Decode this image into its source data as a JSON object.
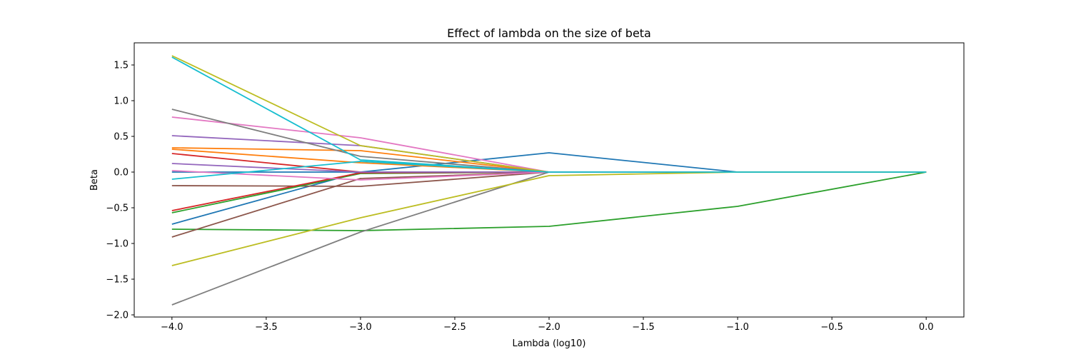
{
  "chart_data": {
    "type": "line",
    "title": "Effect of lambda on the size of beta",
    "xlabel": "Lambda (log10)",
    "ylabel": "Beta",
    "xlim": [
      -4.2,
      0.2
    ],
    "ylim": [
      -2.03,
      1.81
    ],
    "grid": false,
    "legend": "none",
    "x": [
      -4.0,
      -3.0,
      -2.0,
      -1.0,
      0.0
    ],
    "x_ticks": [
      -4.0,
      -3.5,
      -3.0,
      -2.5,
      -2.0,
      -1.5,
      -1.0,
      -0.5,
      0.0
    ],
    "x_tick_labels": [
      "−4.0",
      "−3.5",
      "−3.0",
      "−2.5",
      "−2.0",
      "−1.5",
      "−1.0",
      "−0.5",
      "0.0"
    ],
    "y_ticks": [
      -2.0,
      -1.5,
      -1.0,
      -0.5,
      0.0,
      0.5,
      1.0,
      1.5
    ],
    "y_tick_labels": [
      "−2.0",
      "−1.5",
      "−1.0",
      "−0.5",
      "0.0",
      "0.5",
      "1.0",
      "1.5"
    ],
    "series": [
      {
        "color": "#1f77b4",
        "values": [
          -0.73,
          0.0,
          0.27,
          0.0,
          0.0
        ]
      },
      {
        "color": "#ff7f0e",
        "values": [
          0.34,
          0.3,
          0.0,
          0.0,
          0.0
        ]
      },
      {
        "color": "#2ca02c",
        "values": [
          -0.8,
          -0.82,
          -0.76,
          -0.48,
          0.0
        ]
      },
      {
        "color": "#d62728",
        "values": [
          0.26,
          0.0,
          0.0,
          0.0,
          0.0
        ]
      },
      {
        "color": "#9467bd",
        "values": [
          0.51,
          0.37,
          0.0,
          0.0,
          0.0
        ]
      },
      {
        "color": "#8c564b",
        "values": [
          -0.19,
          -0.2,
          0.0,
          0.0,
          0.0
        ]
      },
      {
        "color": "#e377c2",
        "values": [
          0.77,
          0.48,
          0.0,
          0.0,
          0.0
        ]
      },
      {
        "color": "#7f7f7f",
        "values": [
          0.88,
          0.22,
          0.0,
          0.0,
          0.0
        ]
      },
      {
        "color": "#bcbd22",
        "values": [
          1.63,
          0.37,
          0.0,
          0.0,
          0.0
        ]
      },
      {
        "color": "#17becf",
        "values": [
          1.61,
          0.17,
          0.0,
          0.0,
          0.0
        ]
      },
      {
        "color": "#1f77b4",
        "values": [
          0.0,
          0.0,
          0.0,
          0.0,
          0.0
        ]
      },
      {
        "color": "#ff7f0e",
        "values": [
          0.32,
          0.13,
          0.0,
          0.0,
          0.0
        ]
      },
      {
        "color": "#2ca02c",
        "values": [
          -0.57,
          -0.02,
          0.0,
          0.0,
          0.0
        ]
      },
      {
        "color": "#d62728",
        "values": [
          -0.54,
          -0.01,
          0.0,
          0.0,
          0.0
        ]
      },
      {
        "color": "#9467bd",
        "values": [
          0.12,
          0.0,
          0.0,
          0.0,
          0.0
        ]
      },
      {
        "color": "#8c564b",
        "values": [
          -0.91,
          -0.09,
          0.0,
          0.0,
          0.0
        ]
      },
      {
        "color": "#e377c2",
        "values": [
          0.02,
          -0.11,
          0.0,
          0.0,
          0.0
        ]
      },
      {
        "color": "#7f7f7f",
        "values": [
          -1.86,
          -0.84,
          0.0,
          0.0,
          0.0
        ]
      },
      {
        "color": "#bcbd22",
        "values": [
          -1.31,
          -0.64,
          -0.05,
          0.0,
          0.0
        ]
      },
      {
        "color": "#17becf",
        "values": [
          -0.1,
          0.15,
          0.0,
          0.0,
          0.0
        ]
      }
    ]
  }
}
